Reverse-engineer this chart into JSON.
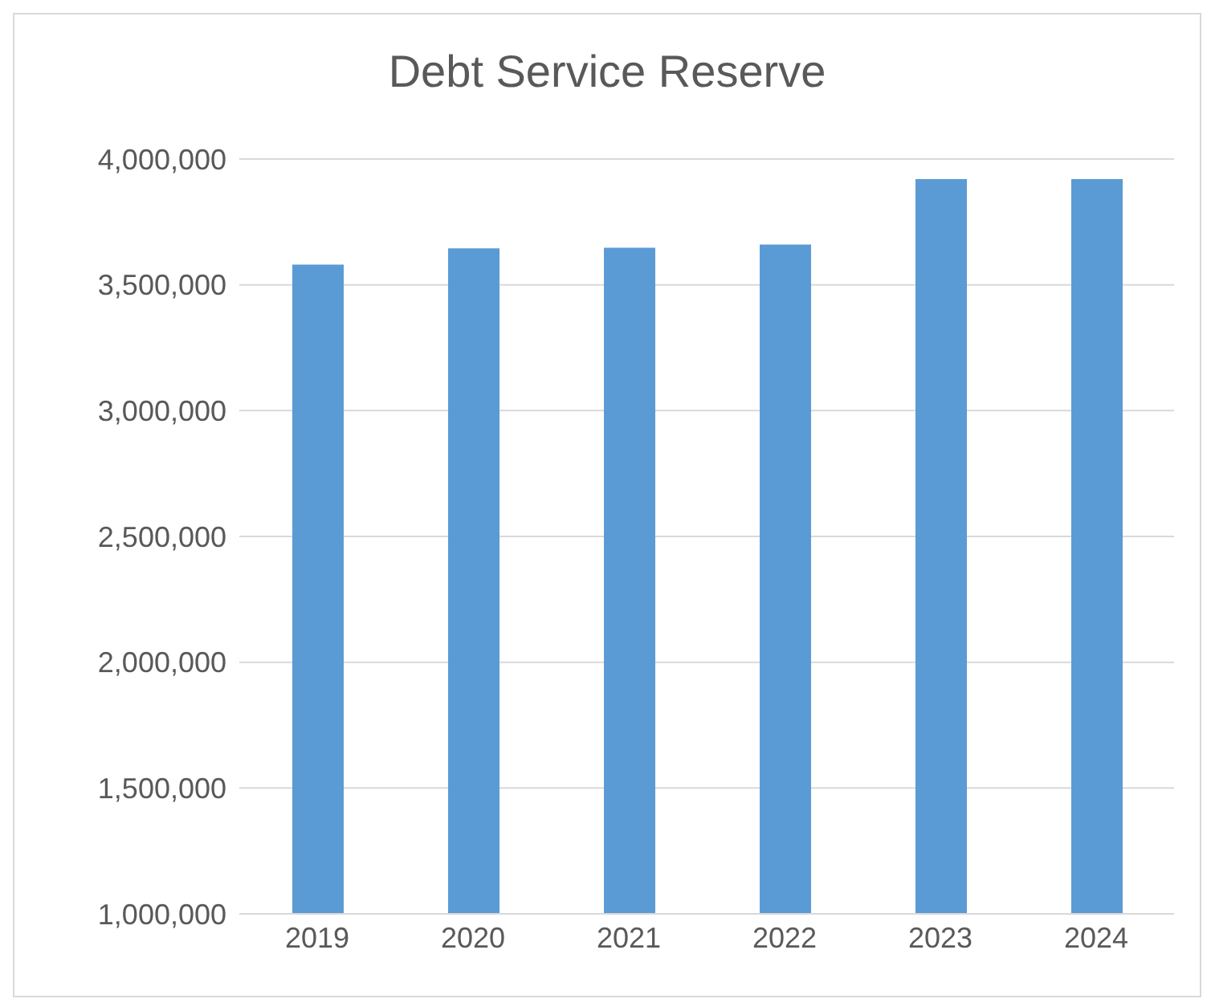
{
  "chart_data": {
    "type": "bar",
    "title": "Debt Service Reserve",
    "categories": [
      "2019",
      "2020",
      "2021",
      "2022",
      "2023",
      "2024"
    ],
    "values": [
      3580000,
      3645000,
      3647000,
      3660000,
      3920000,
      3920000
    ],
    "color": "#5b9bd5",
    "ylim": [
      1000000,
      4000000
    ],
    "yticks": [
      {
        "value": 1000000,
        "label": "1,000,000"
      },
      {
        "value": 1500000,
        "label": "1,500,000"
      },
      {
        "value": 2000000,
        "label": "2,000,000"
      },
      {
        "value": 2500000,
        "label": "2,500,000"
      },
      {
        "value": 3000000,
        "label": "3,000,000"
      },
      {
        "value": 3500000,
        "label": "3,500,000"
      },
      {
        "value": 4000000,
        "label": "4,000,000"
      }
    ],
    "grid": "y"
  }
}
